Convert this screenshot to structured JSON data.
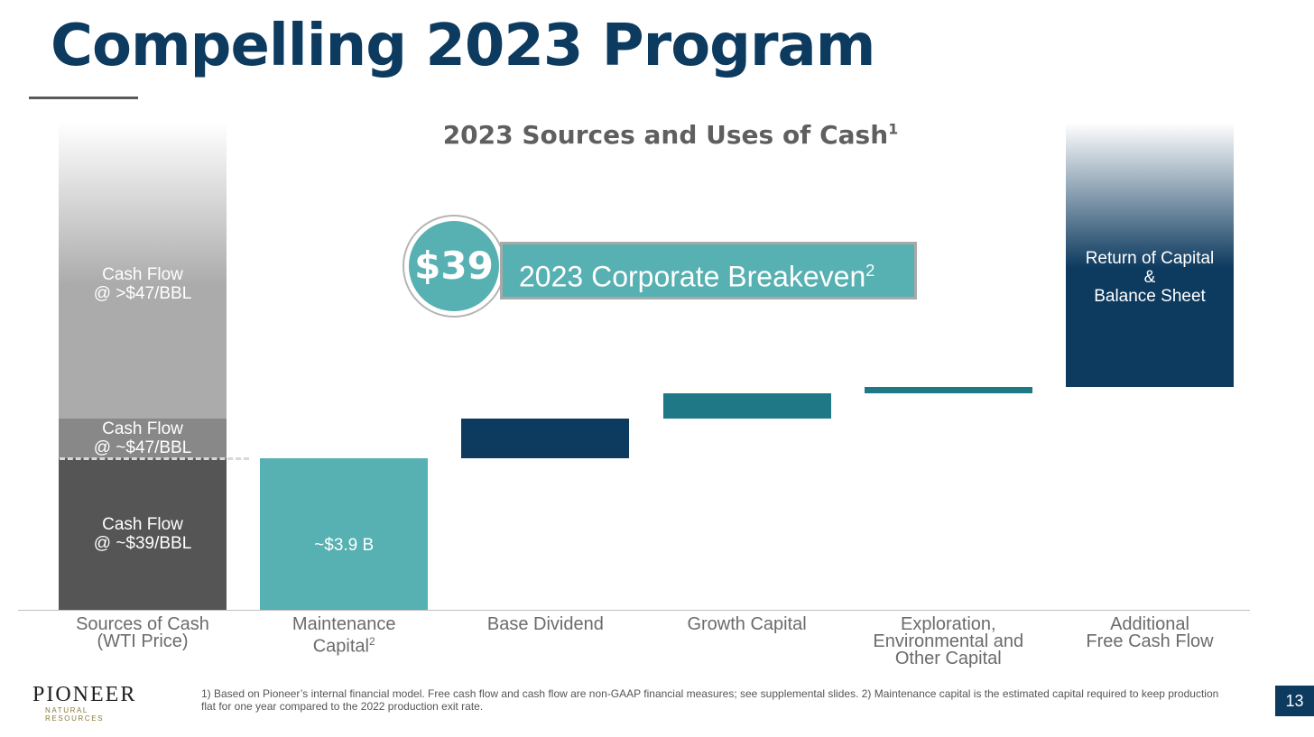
{
  "slide": {
    "title": "Compelling 2023 Program",
    "page_number": "13",
    "footnote": "1) Based on Pioneer’s internal financial model. Free cash flow and cash flow are non-GAAP financial measures; see supplemental slides.  2) Maintenance capital is the estimated capital required to keep production flat for one year compared to the 2022 production exit rate."
  },
  "logo": {
    "name": "PIONEER",
    "tagline": "NATURAL RESOURCES"
  },
  "callout": {
    "value": "$39",
    "text": "2023 Corporate Breakeven",
    "sup": "2"
  },
  "chart_data": {
    "type": "bar",
    "subtype": "waterfall",
    "title": "2023 Sources and Uses of Cash",
    "title_sup": "1",
    "categories": [
      "Sources of Cash\n(WTI Price)",
      "Maintenance\nCapital",
      "Base Dividend",
      "Growth Capital",
      "Exploration,\nEnvironmental and\nOther Capital",
      "Additional\nFree Cash Flow"
    ],
    "category_sups": [
      "",
      "2",
      "",
      "",
      "",
      ""
    ],
    "value_unit": "relative scale (no y-axis printed)",
    "ylim": [
      0,
      540
    ],
    "grid": false,
    "legend": "none",
    "segments": [
      {
        "category": 0,
        "base": 0,
        "top": 168,
        "label": "Cash Flow\n@ ~$39/BBL",
        "color": "#555555",
        "fade": false
      },
      {
        "category": 0,
        "base": 168,
        "top": 212,
        "label": "Cash Flow\n@ ~$47/BBL",
        "color": "#888888",
        "fade": false
      },
      {
        "category": 0,
        "base": 212,
        "top": 540,
        "label": "Cash Flow\n@ >$47/BBL",
        "color": "#ababab",
        "fade": true
      },
      {
        "category": 1,
        "base": 0,
        "top": 168,
        "label": "~$3.9 B",
        "color": "#57b0b1",
        "fade": false
      },
      {
        "category": 2,
        "base": 168,
        "top": 212,
        "label": "",
        "color": "#0d3a5f",
        "fade": false
      },
      {
        "category": 3,
        "base": 212,
        "top": 240,
        "label": "",
        "color": "#1e7886",
        "fade": false
      },
      {
        "category": 4,
        "base": 240,
        "top": 247,
        "label": "",
        "color": "#1e7886",
        "fade": false
      },
      {
        "category": 5,
        "base": 247,
        "top": 540,
        "label": "Return of Capital\n&\nBalance Sheet",
        "color": "#0d3a5f",
        "fade": true
      }
    ],
    "dashed_reference": 168
  }
}
